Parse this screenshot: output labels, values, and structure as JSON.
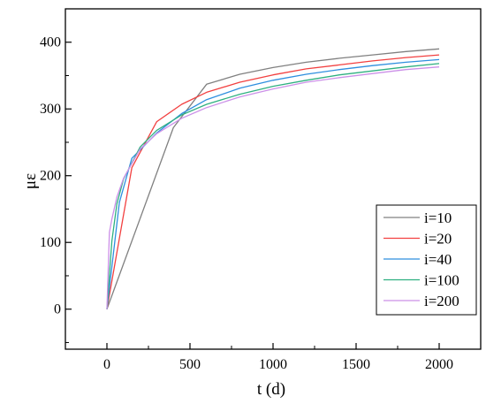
{
  "chart_data": {
    "type": "line",
    "xlabel": "t (d)",
    "ylabel": "με",
    "xlim": [
      -250,
      2250
    ],
    "ylim": [
      -60,
      450
    ],
    "xticks": [
      0,
      500,
      1000,
      1500,
      2000
    ],
    "xtick_labels": [
      "0",
      "500",
      "1000",
      "1500",
      "2000"
    ],
    "yticks": [
      0,
      100,
      200,
      300,
      400
    ],
    "ytick_labels": [
      "0",
      "100",
      "200",
      "300",
      "400"
    ],
    "grid": false,
    "legend_position": "bottom-right",
    "series": [
      {
        "name": "i=10",
        "color": "#808080",
        "x": [
          0,
          400,
          600,
          800,
          1000,
          1200,
          1400,
          1600,
          1800,
          2000
        ],
        "y": [
          0,
          272,
          337,
          352,
          362,
          370,
          376,
          381,
          386,
          390
        ]
      },
      {
        "name": "i=20",
        "color": "#f24040",
        "x": [
          0,
          150,
          300,
          450,
          600,
          800,
          1000,
          1200,
          1400,
          1600,
          1800,
          2000
        ],
        "y": [
          0,
          212,
          281,
          307,
          325,
          340,
          351,
          360,
          366,
          372,
          377,
          381
        ]
      },
      {
        "name": "i=40",
        "color": "#2f8fdf",
        "x": [
          0,
          75,
          150,
          300,
          450,
          600,
          800,
          1000,
          1200,
          1400,
          1600,
          1800,
          2000
        ],
        "y": [
          0,
          160,
          226,
          264,
          293,
          314,
          331,
          343,
          352,
          359,
          365,
          370,
          374
        ]
      },
      {
        "name": "i=100",
        "color": "#2fb080",
        "x": [
          0,
          30,
          60,
          100,
          200,
          300,
          450,
          600,
          800,
          1000,
          1200,
          1400,
          1600,
          1800,
          2000
        ],
        "y": [
          0,
          102,
          158,
          195,
          243,
          268,
          291,
          307,
          322,
          334,
          343,
          351,
          357,
          363,
          368
        ]
      },
      {
        "name": "i=200",
        "color": "#cc90e8",
        "x": [
          0,
          15,
          30,
          60,
          100,
          200,
          300,
          450,
          600,
          800,
          1000,
          1200,
          1400,
          1600,
          1800,
          2000
        ],
        "y": [
          0,
          115,
          135,
          168,
          196,
          240,
          263,
          286,
          302,
          318,
          330,
          340,
          347,
          353,
          359,
          363
        ]
      }
    ]
  }
}
